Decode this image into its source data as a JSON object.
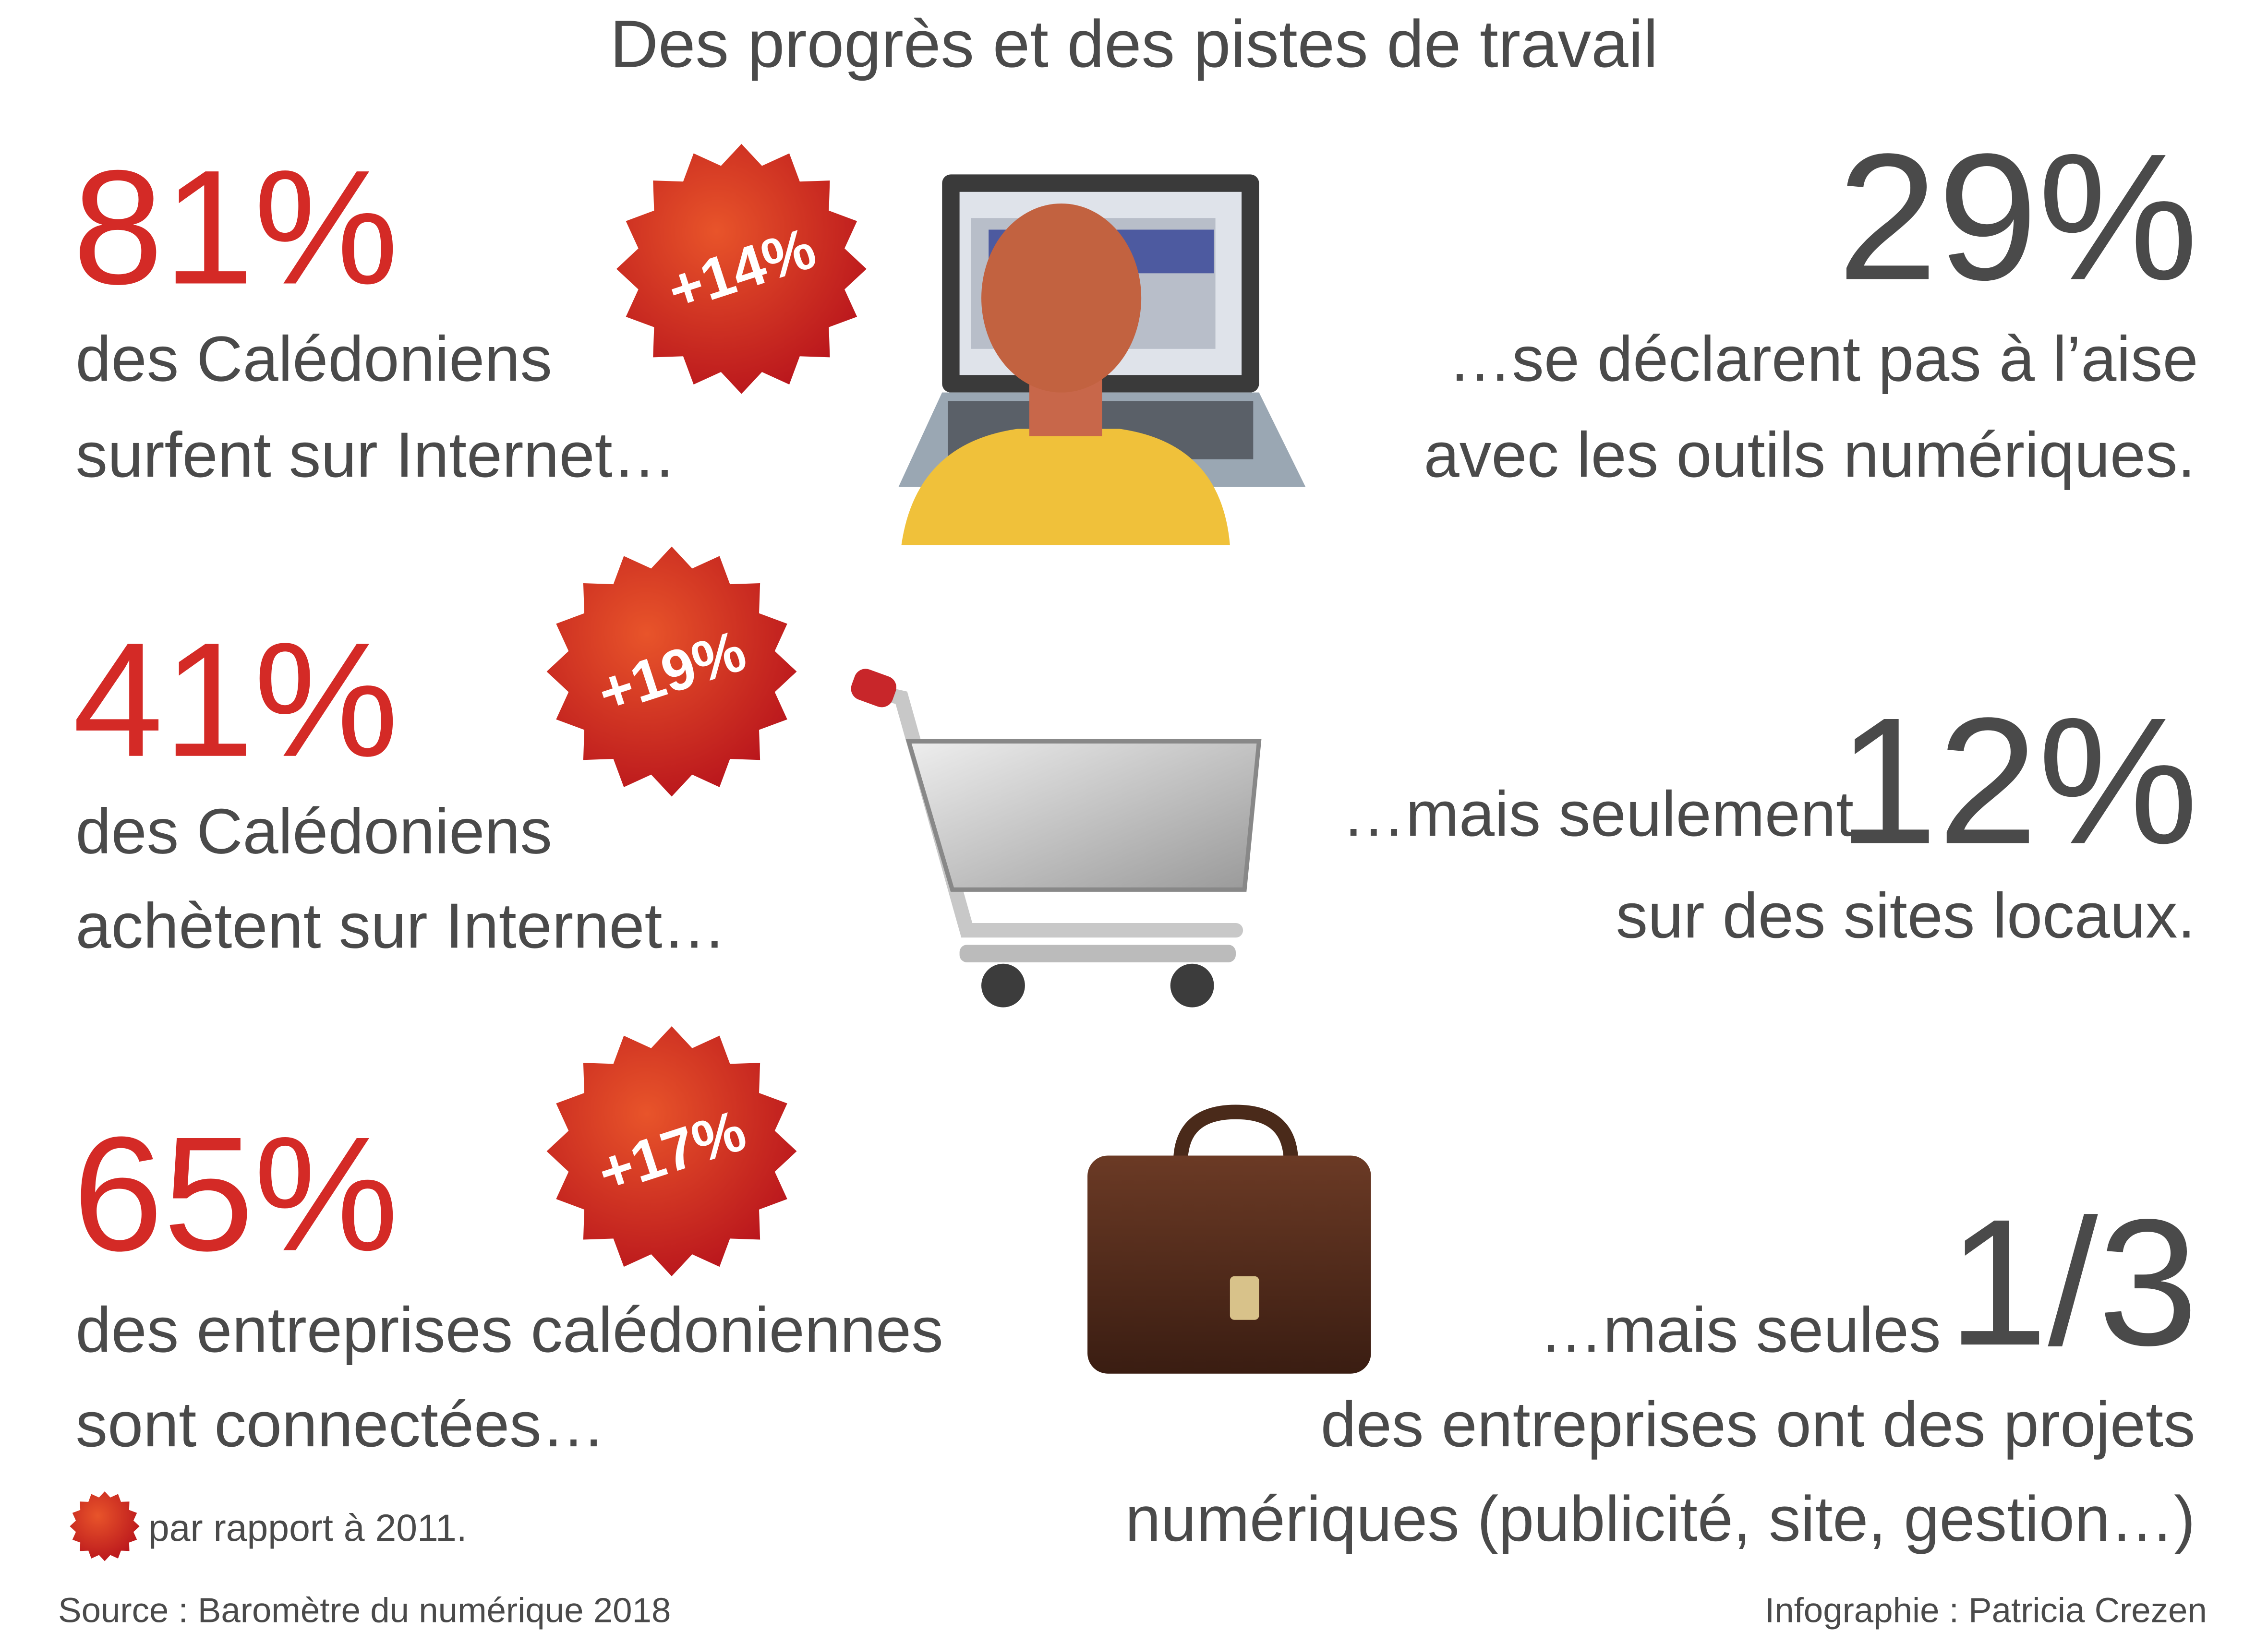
{
  "title": "Des progrès et des pistes de travail",
  "rows": [
    {
      "left_value": "81%",
      "left_text": [
        "des Calédoniens",
        "surfent sur Internet…"
      ],
      "badge": "+14%",
      "right_value": "29%",
      "right_text": [
        "…se déclarent pas à l’aise",
        "avec les outils numériques."
      ]
    },
    {
      "left_value": "41%",
      "left_text": [
        "des Calédoniens",
        "achètent sur Internet…"
      ],
      "badge": "+19%",
      "right_prefix": "…mais seulement",
      "right_value": "12%",
      "right_text": [
        "sur des sites locaux."
      ]
    },
    {
      "left_value": "65%",
      "left_text": [
        "des entreprises calédoniennes",
        "sont connectées…"
      ],
      "badge": "+17%",
      "right_prefix": "…mais seules",
      "right_value": "1/3",
      "right_text": [
        "des entreprises ont des projets",
        "numériques (publicité, site, gestion…)"
      ]
    }
  ],
  "legend_note": "par rapport à 2011.",
  "source": "Source : Baromètre du numérique 2018",
  "credit": "Infographie : Patricia Crezen"
}
